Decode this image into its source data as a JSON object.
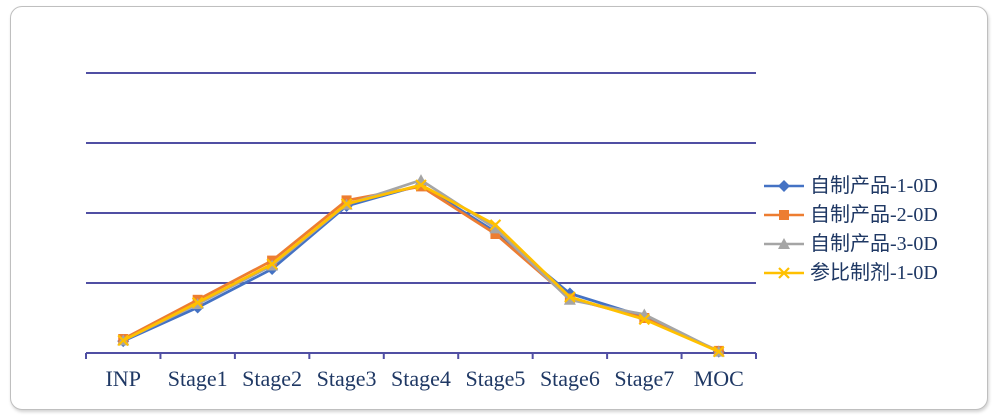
{
  "chart_data": {
    "type": "line",
    "title": "",
    "xlabel": "",
    "ylabel": "",
    "categories": [
      "INP",
      "Stage1",
      "Stage2",
      "Stage3",
      "Stage4",
      "Stage5",
      "Stage6",
      "Stage7",
      "MOC"
    ],
    "series": [
      {
        "name": "自制产品-1-0D",
        "color": "#4472C4",
        "marker": "diamond",
        "values": [
          0.17,
          0.65,
          1.2,
          2.1,
          2.4,
          1.73,
          0.85,
          0.52,
          0.02
        ]
      },
      {
        "name": "自制产品-2-0D",
        "color": "#ED7D31",
        "marker": "square",
        "values": [
          0.2,
          0.76,
          1.32,
          2.18,
          2.38,
          1.7,
          0.78,
          0.5,
          0.03
        ]
      },
      {
        "name": "自制产品-3-0D",
        "color": "#A5A5A5",
        "marker": "triangle",
        "values": [
          0.18,
          0.7,
          1.25,
          2.12,
          2.47,
          1.78,
          0.76,
          0.55,
          0.02
        ]
      },
      {
        "name": "参比制剂-1-0D",
        "color": "#FFC000",
        "marker": "x",
        "values": [
          0.18,
          0.72,
          1.27,
          2.13,
          2.4,
          1.83,
          0.8,
          0.48,
          0.02
        ]
      }
    ],
    "ylim": [
      0,
      4
    ],
    "gridline_values": [
      1,
      2,
      3,
      4
    ],
    "grid_on": true,
    "legend_position": "right",
    "grid_color": "#504FA3",
    "axis_color": "#504FA3",
    "label_color": "#1F3864"
  }
}
